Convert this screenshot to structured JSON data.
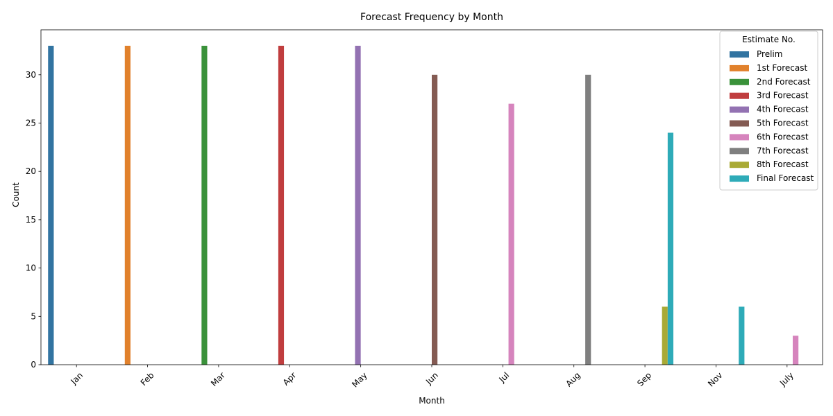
{
  "chart_data": {
    "type": "bar",
    "title": "Forecast Frequency by Month",
    "xlabel": "Month",
    "ylabel": "Count",
    "ylim": [
      0,
      34.65
    ],
    "yticks": [
      0,
      5,
      10,
      15,
      20,
      25,
      30
    ],
    "categories": [
      "Jan",
      "Feb",
      "Mar",
      "Apr",
      "May",
      "Jun",
      "Jul",
      "Aug",
      "Sep",
      "Nov",
      "July"
    ],
    "legend": {
      "title": "Estimate No.",
      "placement": "top-right"
    },
    "series": [
      {
        "name": "Prelim",
        "color": "#3274a1",
        "values": [
          33,
          0,
          0,
          0,
          0,
          0,
          0,
          0,
          0,
          0,
          0
        ]
      },
      {
        "name": "1st Forecast",
        "color": "#e1812c",
        "values": [
          0,
          33,
          0,
          0,
          0,
          0,
          0,
          0,
          0,
          0,
          0
        ]
      },
      {
        "name": "2nd Forecast",
        "color": "#3a923a",
        "values": [
          0,
          0,
          33,
          0,
          0,
          0,
          0,
          0,
          0,
          0,
          0
        ]
      },
      {
        "name": "3rd Forecast",
        "color": "#c03d3e",
        "values": [
          0,
          0,
          0,
          33,
          0,
          0,
          0,
          0,
          0,
          0,
          0
        ]
      },
      {
        "name": "4th Forecast",
        "color": "#9372b2",
        "values": [
          0,
          0,
          0,
          0,
          33,
          0,
          0,
          0,
          0,
          0,
          0
        ]
      },
      {
        "name": "5th Forecast",
        "color": "#845b53",
        "values": [
          0,
          0,
          0,
          0,
          0,
          30,
          0,
          0,
          0,
          0,
          0
        ]
      },
      {
        "name": "6th Forecast",
        "color": "#d684bd",
        "values": [
          0,
          0,
          0,
          0,
          0,
          0,
          27,
          0,
          0,
          0,
          3
        ]
      },
      {
        "name": "7th Forecast",
        "color": "#7f7f7f",
        "values": [
          0,
          0,
          0,
          0,
          0,
          0,
          0,
          30,
          0,
          0,
          0
        ]
      },
      {
        "name": "8th Forecast",
        "color": "#a9aa35",
        "values": [
          0,
          0,
          0,
          0,
          0,
          0,
          0,
          0,
          6,
          0,
          0
        ]
      },
      {
        "name": "Final Forecast",
        "color": "#2eabb8",
        "values": [
          0,
          0,
          0,
          0,
          0,
          0,
          0,
          0,
          24,
          6,
          0
        ]
      }
    ]
  }
}
